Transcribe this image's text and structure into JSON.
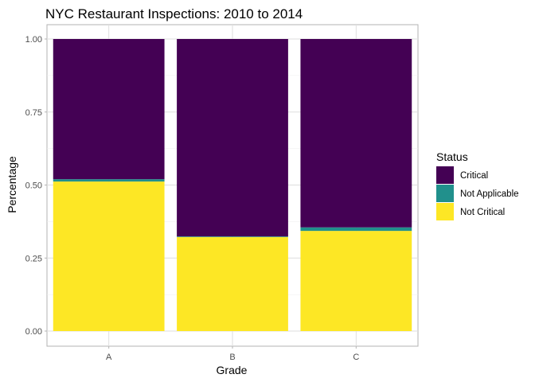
{
  "chart_data": {
    "type": "bar",
    "stacked": true,
    "title": "NYC Restaurant Inspections: 2010 to 2014",
    "xlabel": "Grade",
    "ylabel": "Percentage",
    "categories": [
      "A",
      "B",
      "C"
    ],
    "ylim": [
      0,
      1
    ],
    "yticks": [
      0,
      0.25,
      0.5,
      0.75,
      1
    ],
    "ytick_labels": [
      "0.00",
      "0.25",
      "0.50",
      "0.75",
      "1.00"
    ],
    "grid": true,
    "legend": {
      "title": "Status",
      "position": "right"
    },
    "series": [
      {
        "name": "Not Critical",
        "color": "#FDE725",
        "values": [
          0.512,
          0.322,
          0.343
        ]
      },
      {
        "name": "Not Applicable",
        "color": "#21908C",
        "values": [
          0.008,
          0.002,
          0.012
        ]
      },
      {
        "name": "Critical",
        "color": "#440154",
        "values": [
          0.48,
          0.676,
          0.645
        ]
      }
    ],
    "legend_order": [
      "Critical",
      "Not Applicable",
      "Not Critical"
    ]
  }
}
